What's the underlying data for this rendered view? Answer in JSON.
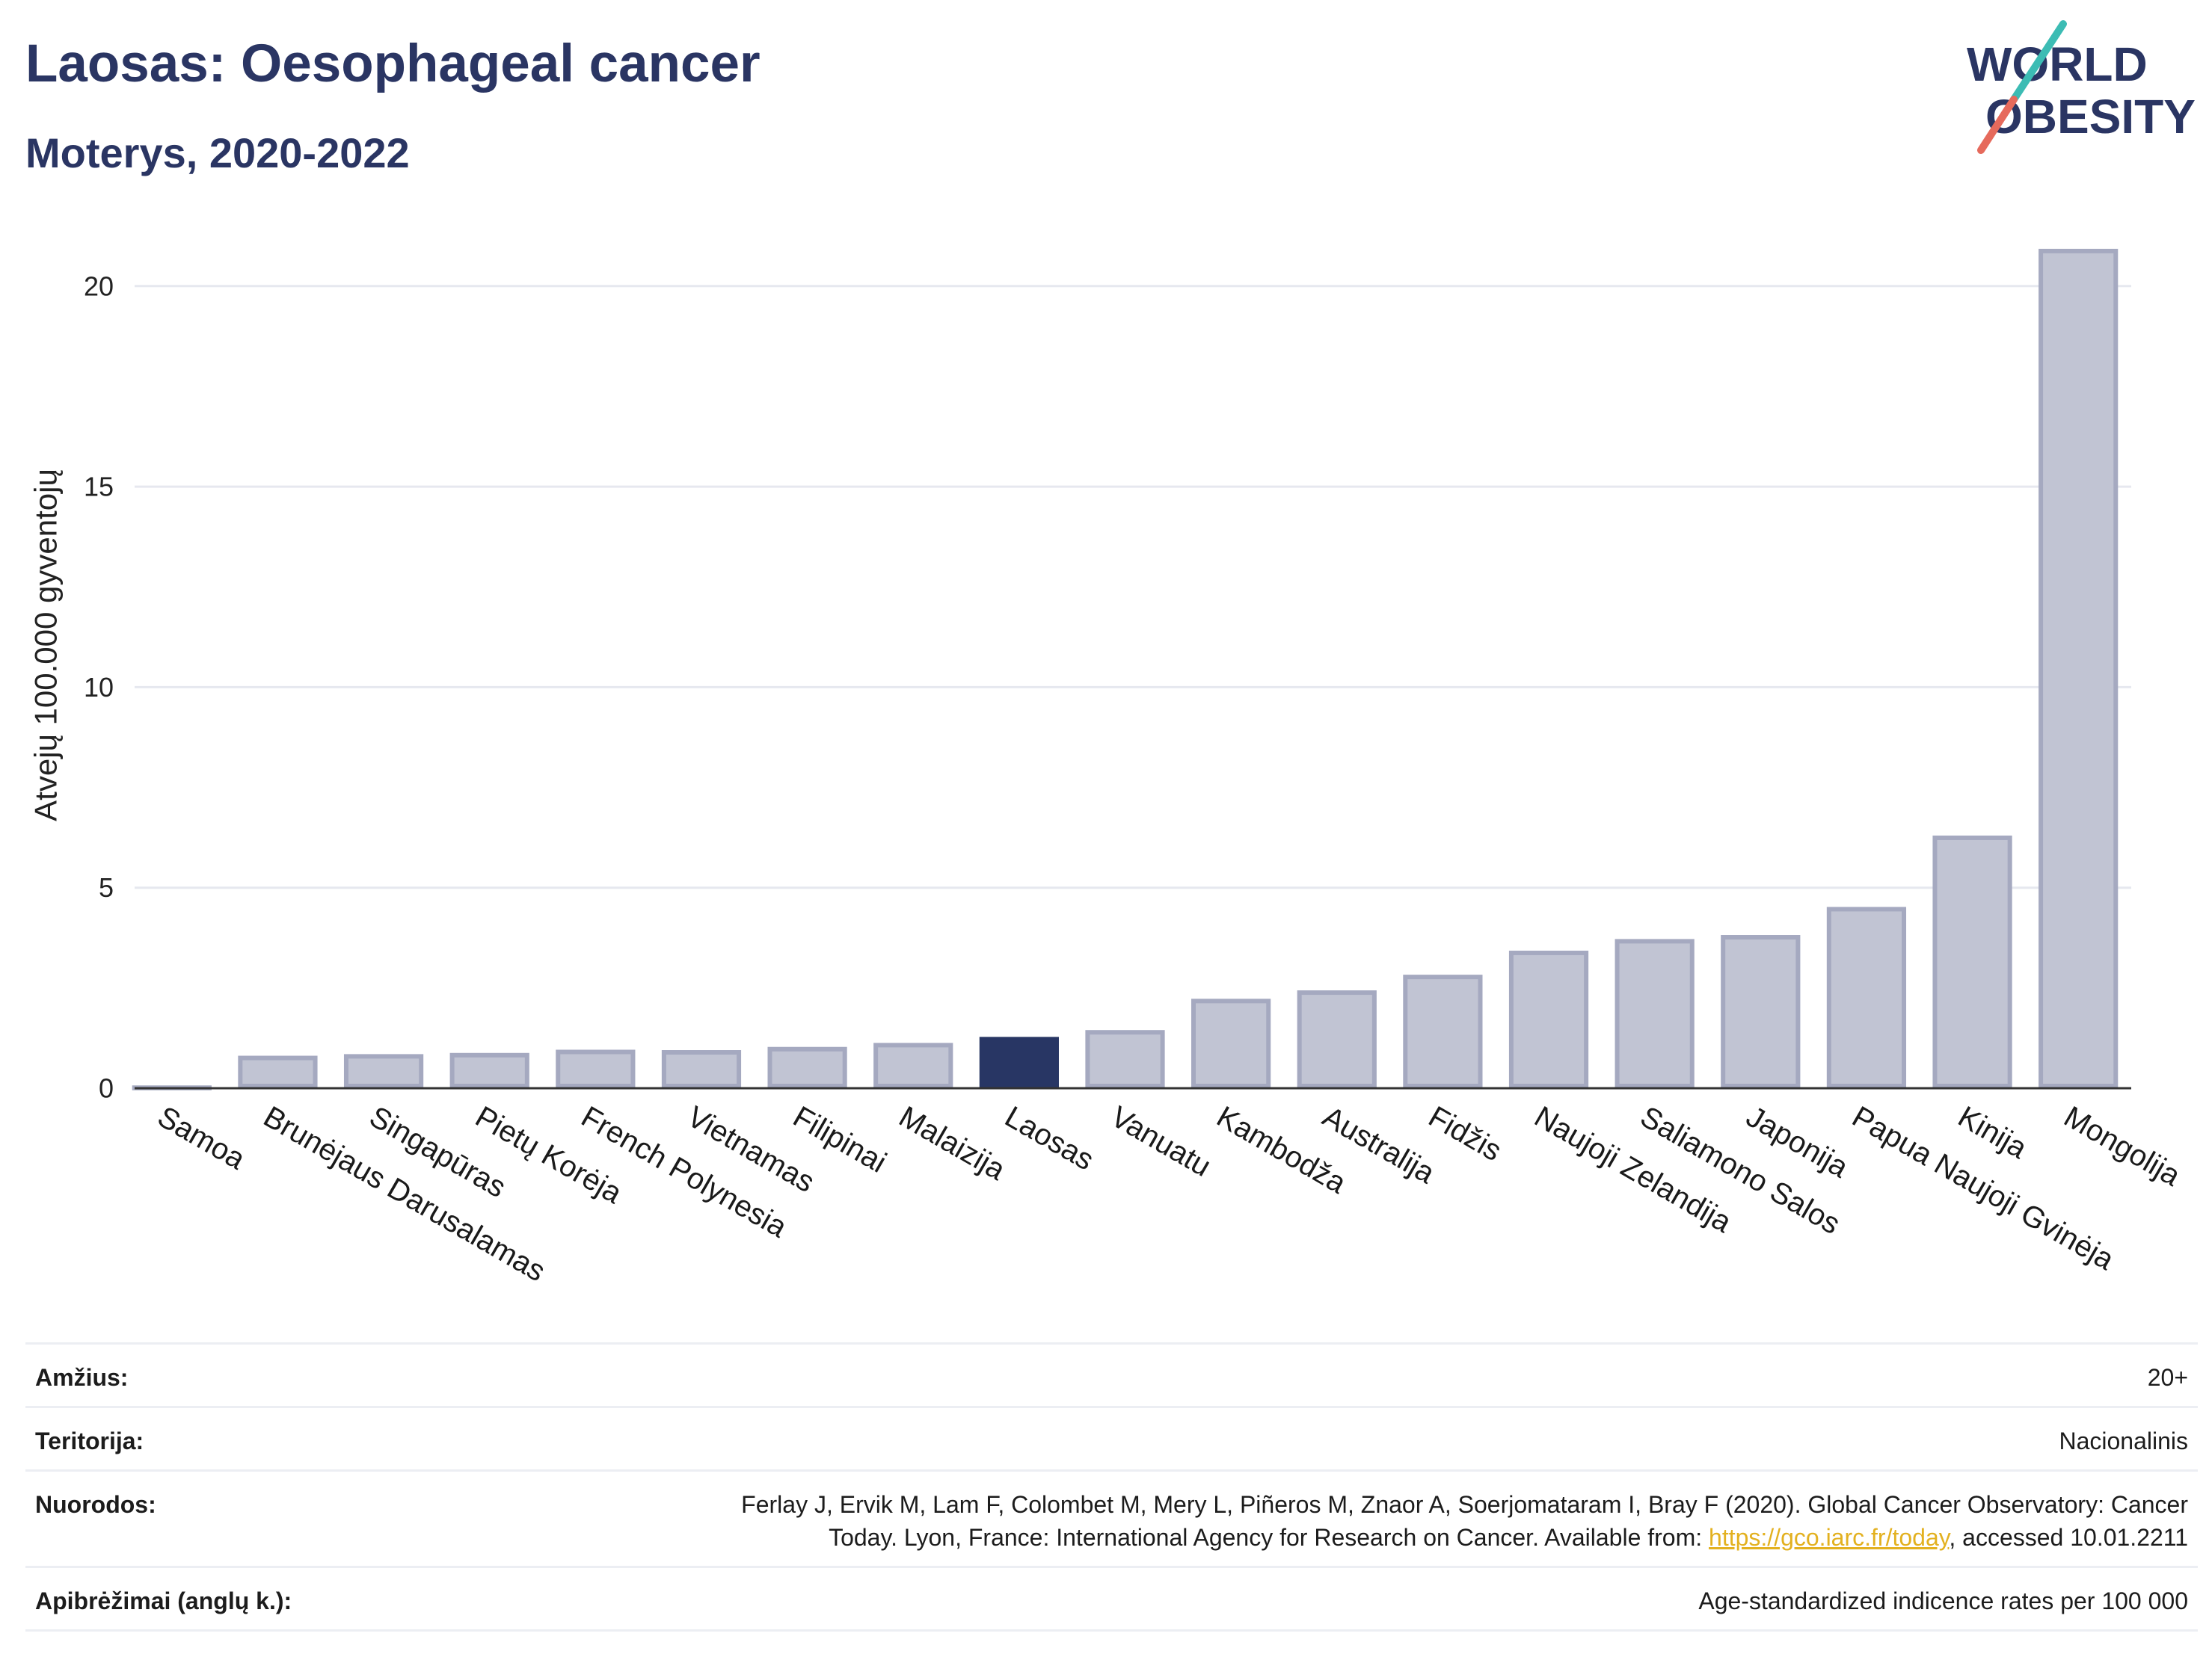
{
  "logo": {
    "line1": "WORLD",
    "line2": "OBESITY"
  },
  "colors": {
    "title": "#2a3563",
    "bar_fill": "#c1c4d3",
    "bar_stroke": "#a5a9c0",
    "highlight": "#283664",
    "gridline": "#e6e8ef",
    "axis": "#333333",
    "tick_text": "#222222",
    "logo_teal": "#3cbcb4",
    "logo_coral": "#e66a5c",
    "link": "#e3b120"
  },
  "chart_data": {
    "type": "bar",
    "title": "Laosas: Oesophageal cancer",
    "subtitle": "Moterys, 2020-2022",
    "ylabel": "Atvejų 100.000 gyventojų",
    "categories": [
      "Samoa",
      "Brunėjaus Darusalamas",
      "Singapūras",
      "Pietų Korėja",
      "French Polynesia",
      "Vietnamas",
      "Filipinai",
      "Malaizija",
      "Laosas",
      "Vanuatu",
      "Kambodža",
      "Australija",
      "Fidžis",
      "Naujoji Zelandija",
      "Saliamono Salos",
      "Japonija",
      "Papua Naujoji Gvinėja",
      "Kinija",
      "Mongolija"
    ],
    "values": [
      0.07,
      0.81,
      0.85,
      0.88,
      0.96,
      0.95,
      1.03,
      1.13,
      1.28,
      1.45,
      2.23,
      2.44,
      2.83,
      3.43,
      3.72,
      3.82,
      4.52,
      6.3,
      20.93
    ],
    "highlight_index": 8,
    "ylim": [
      0,
      22
    ],
    "yticks": [
      0,
      5,
      10,
      15,
      20
    ],
    "grid": true
  },
  "table": {
    "rows": [
      {
        "label": "Amžius:",
        "value": "20+"
      },
      {
        "label": "Teritorija:",
        "value": "Nacionalinis"
      },
      {
        "label": "Nuorodos:",
        "ref_line1": "Ferlay J, Ervik M, Lam F, Colombet M, Mery L, Piñeros M, Znaor A, Soerjomataram I, Bray F (2020). Global Cancer Observatory: Cancer",
        "ref_line2_pre": "Today. Lyon, France: International Agency for Research on Cancer. Available from: ",
        "ref_link": "https://gco.iarc.fr/today",
        "ref_line2_post": ", accessed 10.01.2211"
      },
      {
        "label": "Apibrėžimai (anglų k.):",
        "value": "Age-standardized indicence rates per 100 000"
      }
    ]
  }
}
